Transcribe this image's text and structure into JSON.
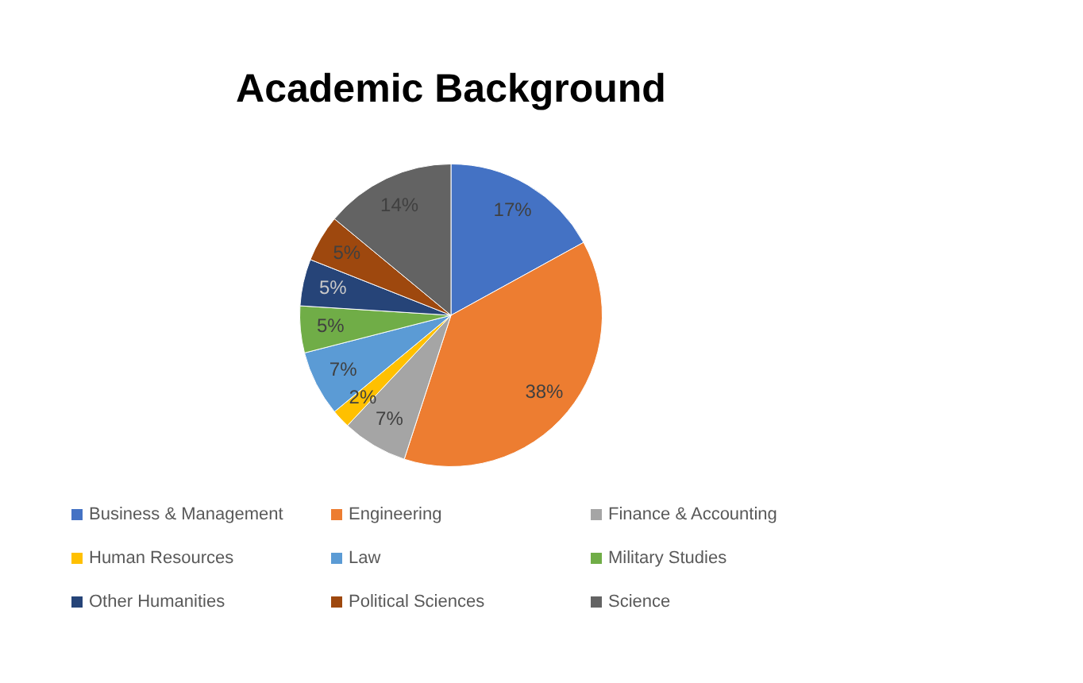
{
  "chart_data": {
    "type": "pie",
    "title": "Academic Background",
    "categories": [
      "Business & Management",
      "Engineering",
      "Finance & Accounting",
      "Human Resources",
      "Law",
      "Military Studies",
      "Other Humanities",
      "Political Sciences",
      "Science"
    ],
    "values": [
      17,
      38,
      7,
      2,
      7,
      5,
      5,
      5,
      14
    ],
    "colors": [
      "#4472c4",
      "#ed7d31",
      "#a5a5a5",
      "#ffc000",
      "#5b9bd5",
      "#70ad47",
      "#264478",
      "#9e480e",
      "#636363"
    ],
    "value_labels": [
      "17%",
      "38%",
      "7%",
      "2%",
      "7%",
      "5%",
      "5%",
      "5%",
      "14%"
    ],
    "legend": "bottom"
  }
}
